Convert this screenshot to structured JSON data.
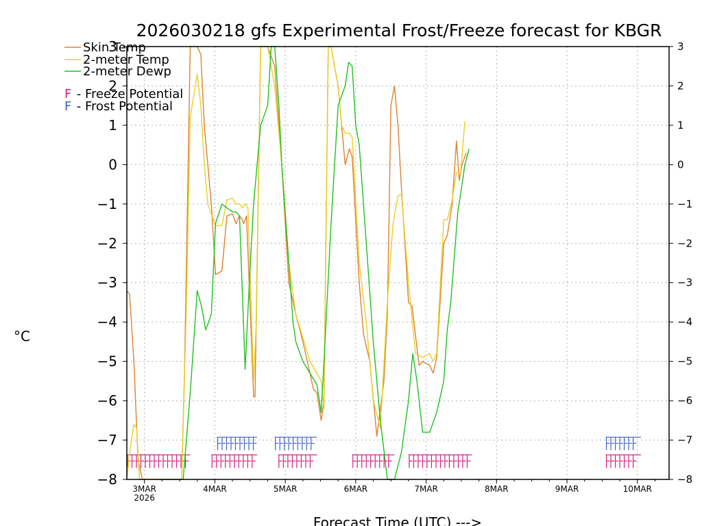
{
  "chart_data": {
    "type": "line",
    "title": "2026030218 gfs Experimental Frost/Freeze forecast for KBGR",
    "xlabel": "Forecast Time (UTC) --->",
    "ylabel": "°C",
    "ylim": [
      -8,
      3
    ],
    "xlim_days": [
      0,
      7.7
    ],
    "x_unit": "days after 2026-03-02 18UTC",
    "y_ticks": [
      -8,
      -7,
      -6,
      -5,
      -4,
      -3,
      -2,
      -1,
      0,
      1,
      2,
      3
    ],
    "y_tick_labels": [
      "−8",
      "−7",
      "−6",
      "−5",
      "−4",
      "−3",
      "−2",
      "−1",
      "0",
      "1",
      "2",
      "3"
    ],
    "x_ticks": [
      {
        "x": 0.25,
        "label": "3MAR",
        "sublabel": "2026"
      },
      {
        "x": 1.25,
        "label": "4MAR",
        "sublabel": ""
      },
      {
        "x": 2.25,
        "label": "5MAR",
        "sublabel": ""
      },
      {
        "x": 3.25,
        "label": "6MAR",
        "sublabel": ""
      },
      {
        "x": 4.25,
        "label": "7MAR",
        "sublabel": ""
      },
      {
        "x": 5.25,
        "label": "8MAR",
        "sublabel": ""
      },
      {
        "x": 6.25,
        "label": "9MAR",
        "sublabel": ""
      },
      {
        "x": 7.25,
        "label": "10MAR",
        "sublabel": ""
      }
    ],
    "grid": true,
    "legend": {
      "position": "top-left",
      "entries": [
        {
          "label": "Skin Temp",
          "color": "#e08030"
        },
        {
          "label": "2-meter Temp",
          "color": "#e8d020"
        },
        {
          "label": "2-meter Dewp",
          "color": "#20c020"
        }
      ],
      "flags": [
        {
          "letter": "F",
          "text": " - Freeze Potential",
          "color": "#d02080"
        },
        {
          "letter": "F",
          "text": " - Frost Potential",
          "color": "#4060c0"
        }
      ]
    },
    "series": [
      {
        "name": "Skin Temp",
        "color": "#e08030",
        "x": [
          0.0,
          0.04,
          0.1,
          0.16,
          0.22,
          0.5,
          0.78,
          0.82,
          0.9,
          1.0,
          1.05,
          1.1,
          1.2,
          1.26,
          1.35,
          1.42,
          1.5,
          1.55,
          1.6,
          1.64,
          1.66,
          1.7,
          1.8,
          1.82,
          1.9,
          2.0,
          2.1,
          2.2,
          2.3,
          2.4,
          2.5,
          2.6,
          2.65,
          2.7,
          2.76,
          2.8,
          2.86,
          2.9,
          3.0,
          3.05,
          3.1,
          3.16,
          3.2,
          3.3,
          3.36,
          3.45,
          3.55,
          3.65,
          3.7,
          3.75,
          3.8,
          3.85,
          3.9,
          4.0,
          4.05,
          4.15,
          4.2,
          4.3,
          4.35,
          4.4,
          4.5,
          4.55,
          4.62,
          4.68,
          4.72,
          4.76,
          4.82,
          4.88,
          4.94,
          5.0
        ],
        "y": [
          -3.2,
          -3.3,
          -5.0,
          -7.5,
          -8.2,
          -8.2,
          -8.2,
          -5.2,
          3.0,
          3.0,
          2.8,
          1.0,
          -1.0,
          -2.8,
          -2.7,
          -1.3,
          -1.25,
          -1.5,
          -1.3,
          -1.4,
          -1.5,
          -1.3,
          -5.9,
          -5.9,
          3.0,
          3.0,
          2.5,
          0.0,
          -3.0,
          -3.8,
          -4.5,
          -5.3,
          -5.7,
          -5.8,
          -6.5,
          -6.0,
          3.0,
          3.0,
          2.0,
          1.0,
          0.0,
          0.4,
          0.2,
          -3.0,
          -4.3,
          -5.0,
          -6.9,
          -5.5,
          -3.8,
          1.5,
          2.0,
          1.0,
          -0.6,
          -3.5,
          -3.6,
          -5.1,
          -5.0,
          -5.1,
          -5.3,
          -4.9,
          -2.0,
          -1.8,
          -1.0,
          0.6,
          -0.4,
          0.0,
          0.3,
          null,
          null,
          null
        ]
      },
      {
        "name": "2-meter Temp",
        "color": "#e8d020",
        "x": [
          0.0,
          0.04,
          0.1,
          0.14,
          0.18,
          0.22,
          0.5,
          0.78,
          0.84,
          0.9,
          1.0,
          1.05,
          1.1,
          1.15,
          1.26,
          1.35,
          1.42,
          1.5,
          1.55,
          1.6,
          1.64,
          1.68,
          1.72,
          1.8,
          1.84,
          1.9,
          2.0,
          2.1,
          2.2,
          2.3,
          2.4,
          2.5,
          2.6,
          2.7,
          2.76,
          2.8,
          2.86,
          2.9,
          3.0,
          3.05,
          3.1,
          3.16,
          3.2,
          3.3,
          3.4,
          3.5,
          3.6,
          3.7,
          3.78,
          3.85,
          3.9,
          4.0,
          4.1,
          4.2,
          4.3,
          4.35,
          4.4,
          4.5,
          4.55,
          4.62,
          4.68,
          4.74,
          4.8,
          4.86
        ],
        "y": [
          -8.2,
          -7.3,
          -6.6,
          -6.7,
          -8.2,
          -8.2,
          -8.2,
          -8.2,
          -4.0,
          1.2,
          2.3,
          1.5,
          0.0,
          -1.0,
          -1.55,
          -1.55,
          -0.9,
          -0.85,
          -1.0,
          -1.0,
          -1.1,
          -1.0,
          -1.1,
          -5.5,
          -4.0,
          3.0,
          3.0,
          2.0,
          0.0,
          -2.5,
          -3.8,
          -4.4,
          -5.0,
          -5.3,
          -5.5,
          -6.2,
          3.0,
          3.0,
          2.0,
          1.0,
          0.8,
          0.8,
          0.7,
          -2.5,
          -4.0,
          -6.0,
          -6.7,
          -3.5,
          -1.5,
          -0.8,
          -0.75,
          -3.0,
          -4.8,
          -4.9,
          -4.8,
          -5.0,
          -4.8,
          -1.4,
          -1.4,
          -0.9,
          -0.2,
          -0.2,
          1.1,
          null
        ]
      },
      {
        "name": "2-meter Dewp",
        "color": "#20c020",
        "x": [
          0.5,
          0.8,
          0.9,
          1.0,
          1.06,
          1.12,
          1.2,
          1.26,
          1.35,
          1.42,
          1.5,
          1.55,
          1.6,
          1.68,
          1.74,
          1.8,
          1.9,
          2.0,
          2.05,
          2.1,
          2.16,
          2.2,
          2.3,
          2.36,
          2.4,
          2.5,
          2.6,
          2.7,
          2.76,
          2.8,
          2.9,
          3.0,
          3.1,
          3.15,
          3.2,
          3.25,
          3.3,
          3.4,
          3.5,
          3.6,
          3.7,
          3.8,
          3.9,
          4.0,
          4.06,
          4.12,
          4.2,
          4.3,
          4.4,
          4.5,
          4.55,
          4.6,
          4.7,
          4.76,
          4.8,
          4.86
        ],
        "y": [
          -8.2,
          -8.2,
          -5.8,
          -3.2,
          -3.6,
          -4.2,
          -3.8,
          -1.5,
          -1.0,
          -1.1,
          -1.2,
          -1.2,
          -1.3,
          -5.2,
          -3.0,
          -1.0,
          1.0,
          1.5,
          3.0,
          3.0,
          1.5,
          0.0,
          -2.5,
          -4.0,
          -4.5,
          -5.0,
          -5.3,
          -5.6,
          -6.3,
          -5.0,
          -1.5,
          1.5,
          2.0,
          2.6,
          2.5,
          1.0,
          0.5,
          -2.0,
          -4.5,
          -6.5,
          -8.2,
          -8.2,
          -7.3,
          -6.0,
          -4.8,
          -5.5,
          -6.8,
          -6.8,
          -6.3,
          -5.5,
          -4.2,
          -3.5,
          -1.2,
          -0.5,
          0.0,
          0.4
        ]
      }
    ],
    "flag_rows": [
      {
        "type": "freeze",
        "color": "#d02080",
        "y": -7.55,
        "segments": [
          [
            0.0,
            0.9
          ],
          [
            1.2,
            1.85
          ],
          [
            2.15,
            2.7
          ],
          [
            3.2,
            3.8
          ],
          [
            4.0,
            4.9
          ],
          [
            6.8,
            7.3
          ]
        ]
      },
      {
        "type": "frost",
        "color": "#4060c0",
        "y": -7.1,
        "segments": [
          [
            1.28,
            1.85
          ],
          [
            2.1,
            2.7
          ],
          [
            6.8,
            7.3
          ]
        ]
      }
    ]
  }
}
